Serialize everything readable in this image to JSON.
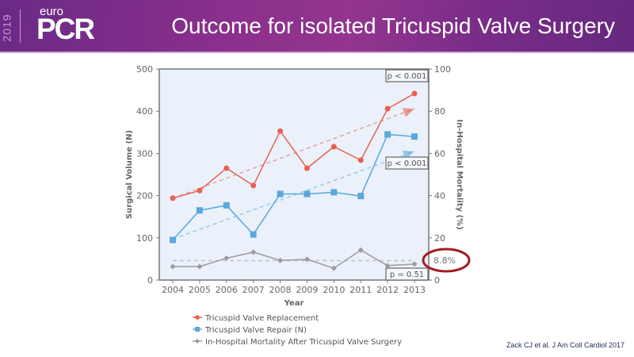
{
  "header": {
    "logo_year": "2019",
    "logo_euro": "euro",
    "logo_pcr": "PCR",
    "title": "Outcome for isolated Tricuspid Valve Surgery"
  },
  "citation": "Zack CJ et al. J Am Coll Cardiol 2017",
  "colors": {
    "replacement": "#e8604f",
    "repair": "#5aa7dc",
    "mortality": "#9b9b9b",
    "plot_bg": "#eaf1fa",
    "highlight": "#a31c24"
  },
  "chart_data": {
    "type": "line",
    "title": "",
    "xlabel": "Year",
    "ylabel": "Surgical Volume (N)",
    "ylabel_right": "In-Hospital Mortality (%)",
    "x": [
      2004,
      2005,
      2006,
      2007,
      2008,
      2009,
      2010,
      2011,
      2012,
      2013
    ],
    "x_tick_labels": [
      "2004",
      "2005",
      "2006",
      "2007",
      "2008",
      "2009",
      "2010",
      "2011",
      "2012",
      "2013"
    ],
    "ylim": [
      0,
      500
    ],
    "y_ticks": [
      "0",
      "100",
      "200",
      "300",
      "400",
      "500"
    ],
    "ylim_right": [
      0,
      100
    ],
    "y_ticks_right": [
      "0",
      "20",
      "40",
      "60",
      "80",
      "100"
    ],
    "series": [
      {
        "name": "Tricuspid Valve Replacement",
        "axis": "left",
        "marker": "circle",
        "values": [
          194,
          212,
          265,
          224,
          353,
          265,
          316,
          284,
          406,
          442
        ],
        "trend": [
          194,
          406
        ],
        "p_label": "p < 0.001"
      },
      {
        "name": "Tricuspid Valve Repair (N)",
        "axis": "left",
        "marker": "square",
        "values": [
          95,
          165,
          177,
          108,
          204,
          204,
          208,
          199,
          345,
          340
        ],
        "trend": [
          97,
          305
        ],
        "p_label": "p < 0.001"
      },
      {
        "name": "In-Hospital Mortality After Tricuspid Valve Surgery",
        "axis": "right",
        "marker": "diamond",
        "values": [
          6.4,
          6.4,
          10.4,
          13.2,
          9.3,
          9.8,
          5.6,
          14.2,
          6.8,
          7.6
        ],
        "trend": [
          9.2,
          9.2
        ],
        "p_label": "p = 0.51"
      }
    ],
    "annotation": "8.8%",
    "grid": false,
    "legend": "bottom"
  }
}
